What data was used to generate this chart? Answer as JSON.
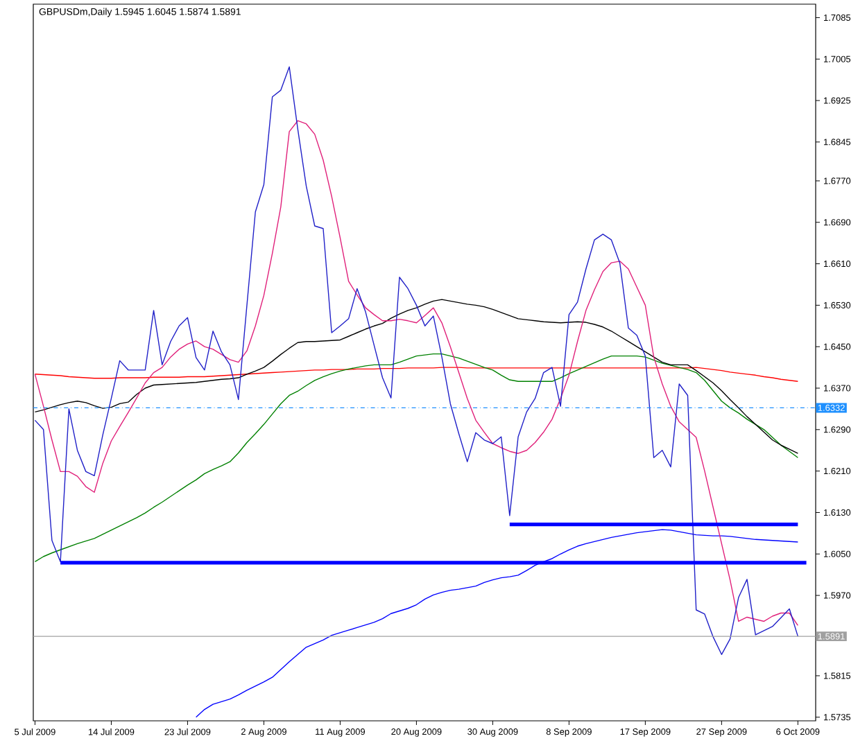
{
  "chart_data": {
    "type": "line",
    "title": "GBPUSDm,Daily  1.5945 1.6045 1.5874 1.5891",
    "ylim": [
      1.5728,
      1.7111
    ],
    "categories": [
      "5 Jul 2009",
      null,
      null,
      null,
      null,
      null,
      null,
      null,
      null,
      "14 Jul 2009",
      null,
      null,
      null,
      null,
      null,
      null,
      null,
      null,
      "23 Jul 2009",
      null,
      null,
      null,
      null,
      null,
      null,
      null,
      null,
      "2 Aug 2009",
      null,
      null,
      null,
      null,
      null,
      null,
      null,
      null,
      "11 Aug 2009",
      null,
      null,
      null,
      null,
      null,
      null,
      null,
      null,
      "20 Aug 2009",
      null,
      null,
      null,
      null,
      null,
      null,
      null,
      null,
      "30 Aug 2009",
      null,
      null,
      null,
      null,
      null,
      null,
      null,
      null,
      "8 Sep 2009",
      null,
      null,
      null,
      null,
      null,
      null,
      null,
      null,
      "17 Sep 2009",
      null,
      null,
      null,
      null,
      null,
      null,
      null,
      null,
      "27 Sep 2009",
      null,
      null,
      null,
      null,
      null,
      null,
      null,
      null,
      "6 Oct 2009",
      null,
      null
    ],
    "yticks": [
      1.5735,
      1.5815,
      {
        "value": 1.597,
        "label": "1.5970"
      },
      {
        "value": 1.605,
        "label": "1.6050"
      },
      {
        "value": 1.613,
        "label": "1.6130"
      },
      {
        "value": 1.621,
        "label": "1.6210"
      },
      {
        "value": 1.629,
        "label": "1.6290"
      },
      {
        "value": 1.637,
        "label": "1.6370"
      },
      {
        "value": 1.645,
        "label": "1.6450"
      },
      {
        "value": 1.653,
        "label": "1.6530"
      },
      {
        "value": 1.661,
        "label": "1.6610"
      },
      {
        "value": 1.669,
        "label": "1.6690"
      },
      {
        "value": 1.677,
        "label": "1.6770"
      },
      1.6845,
      1.6925,
      1.7005,
      1.7085
    ],
    "ref_lines": [
      {
        "axis": "y",
        "value": 1.6332,
        "label": "1.6332",
        "color": "#1e90ff",
        "line_style": "dashdot"
      },
      {
        "axis": "y",
        "value": 1.5891,
        "label": "1.5891",
        "color": "#a0a0a0",
        "line_style": "solid"
      }
    ],
    "series": [
      {
        "color": "#0000ff",
        "values": [
          null,
          null,
          null,
          null,
          null,
          null,
          null,
          null,
          null,
          null,
          null,
          null,
          null,
          null,
          null,
          null,
          null,
          null,
          null,
          1.5735,
          1.575,
          1.576,
          1.5765,
          1.577,
          1.5778,
          1.5787,
          1.5795,
          1.5803,
          1.5812,
          1.5827,
          1.5842,
          1.5856,
          1.587,
          1.5877,
          1.5884,
          1.5893,
          1.5898,
          1.5903,
          1.5908,
          1.5913,
          1.5918,
          1.5925,
          1.5935,
          1.594,
          1.5945,
          1.5952,
          1.5963,
          1.5971,
          1.5976,
          1.598,
          1.5982,
          1.5985,
          1.5988,
          1.5995,
          1.6,
          1.6004,
          1.6006,
          1.6009,
          1.6018,
          1.6028,
          1.6035,
          1.6041,
          1.605,
          1.6058,
          1.6065,
          1.607,
          1.6074,
          1.6078,
          1.6082,
          1.6085,
          1.6088,
          1.6091,
          1.6093,
          1.6095,
          1.6097,
          1.6096,
          1.6093,
          1.609,
          1.6087,
          1.6086,
          1.6085,
          1.6085,
          1.6084,
          1.6082,
          1.608,
          1.6078,
          1.6077,
          1.6076,
          1.6075,
          1.6074,
          1.6073,
          null,
          null
        ]
      },
      {
        "color": "#ff0000",
        "values": [
          1.6397,
          1.6396,
          1.6395,
          1.6394,
          1.6392,
          1.6391,
          1.639,
          1.6389,
          1.6389,
          1.6389,
          1.639,
          1.639,
          1.639,
          1.639,
          1.6391,
          1.6391,
          1.6391,
          1.6391,
          1.6392,
          1.6392,
          1.6392,
          1.6393,
          1.6394,
          1.6395,
          1.6396,
          1.6397,
          1.6398,
          1.6399,
          1.64,
          1.6401,
          1.6402,
          1.6403,
          1.6404,
          1.6405,
          1.6405,
          1.6406,
          1.6406,
          1.6406,
          1.6407,
          1.6407,
          1.6407,
          1.6408,
          1.6408,
          1.6408,
          1.6409,
          1.6409,
          1.6409,
          1.6409,
          1.641,
          1.641,
          1.641,
          1.6409,
          1.6409,
          1.6409,
          1.6409,
          1.6409,
          1.6409,
          1.6409,
          1.6409,
          1.6409,
          1.6409,
          1.6409,
          1.6409,
          1.6409,
          1.6409,
          1.6409,
          1.6409,
          1.6409,
          1.6409,
          1.6409,
          1.6409,
          1.6409,
          1.6409,
          1.6409,
          1.6409,
          1.6409,
          1.6409,
          1.6409,
          1.641,
          1.6408,
          1.6406,
          1.6404,
          1.6401,
          1.6399,
          1.6397,
          1.6395,
          1.6392,
          1.639,
          1.6387,
          1.6385,
          1.6383,
          null,
          null
        ]
      },
      {
        "color": "#008000",
        "values": [
          1.6035,
          1.6045,
          1.6052,
          1.6058,
          1.6064,
          1.607,
          1.6075,
          1.608,
          1.6088,
          1.6096,
          1.6104,
          1.6112,
          1.612,
          1.6129,
          1.614,
          1.615,
          1.6161,
          1.6172,
          1.6183,
          1.6193,
          1.6205,
          1.6213,
          1.622,
          1.6228,
          1.6245,
          1.6265,
          1.6282,
          1.63,
          1.632,
          1.634,
          1.6356,
          1.6364,
          1.6375,
          1.6385,
          1.6392,
          1.6398,
          1.6403,
          1.6407,
          1.641,
          1.6413,
          1.6415,
          1.6415,
          1.6415,
          1.642,
          1.6426,
          1.6432,
          1.6434,
          1.6436,
          1.6436,
          1.6432,
          1.6428,
          1.6422,
          1.6416,
          1.641,
          1.6405,
          1.6395,
          1.6386,
          1.6383,
          1.6383,
          1.6383,
          1.6383,
          1.6383,
          1.639,
          1.6398,
          1.6405,
          1.6412,
          1.6419,
          1.6426,
          1.6432,
          1.6432,
          1.6432,
          1.6432,
          1.643,
          1.6424,
          1.6418,
          1.6414,
          1.641,
          1.6406,
          1.64,
          1.6385,
          1.6365,
          1.6345,
          1.6332,
          1.6322,
          1.631,
          1.63,
          1.629,
          1.6275,
          1.626,
          1.6248,
          1.6236,
          null,
          null
        ]
      },
      {
        "color": "#000000",
        "values": [
          1.6324,
          1.6328,
          1.6333,
          1.6338,
          1.6342,
          1.6345,
          1.6342,
          1.6336,
          1.6331,
          1.6333,
          1.634,
          1.6343,
          1.6358,
          1.637,
          1.6376,
          1.6377,
          1.6378,
          1.6379,
          1.638,
          1.6381,
          1.6383,
          1.6385,
          1.6387,
          1.6388,
          1.639,
          1.6397,
          1.6403,
          1.641,
          1.6422,
          1.6435,
          1.6447,
          1.6458,
          1.646,
          1.646,
          1.6461,
          1.6462,
          1.6463,
          1.647,
          1.6477,
          1.6484,
          1.649,
          1.6495,
          1.6505,
          1.6513,
          1.652,
          1.6525,
          1.6532,
          1.6538,
          1.6541,
          1.6538,
          1.6535,
          1.6532,
          1.653,
          1.6527,
          1.6522,
          1.6516,
          1.651,
          1.6504,
          1.6502,
          1.65,
          1.6498,
          1.6497,
          1.6496,
          1.6497,
          1.6498,
          1.6497,
          1.6493,
          1.6488,
          1.648,
          1.647,
          1.646,
          1.645,
          1.644,
          1.643,
          1.642,
          1.6415,
          1.6415,
          1.6415,
          1.6404,
          1.6392,
          1.638,
          1.6365,
          1.6348,
          1.6332,
          1.6315,
          1.63,
          1.6285,
          1.627,
          1.626,
          1.6252,
          1.6244,
          null,
          null
        ]
      },
      {
        "color": "#e0207a",
        "values": [
          1.6397,
          1.6335,
          1.627,
          1.6209,
          1.6209,
          1.62,
          1.618,
          1.6169,
          1.6225,
          1.6268,
          1.6296,
          1.6323,
          1.6351,
          1.638,
          1.64,
          1.641,
          1.643,
          1.6445,
          1.6455,
          1.6461,
          1.645,
          1.6445,
          1.6435,
          1.6425,
          1.642,
          1.6442,
          1.649,
          1.6549,
          1.663,
          1.672,
          1.6865,
          1.6886,
          1.688,
          1.686,
          1.681,
          1.674,
          1.666,
          1.6576,
          1.655,
          1.6525,
          1.6512,
          1.65,
          1.65,
          1.6503,
          1.65,
          1.6496,
          1.651,
          1.6525,
          1.6496,
          1.645,
          1.64,
          1.635,
          1.6308,
          1.6285,
          1.6263,
          1.6255,
          1.6248,
          1.6244,
          1.625,
          1.6265,
          1.6285,
          1.631,
          1.635,
          1.6395,
          1.646,
          1.652,
          1.656,
          1.6595,
          1.6612,
          1.6615,
          1.66,
          1.6565,
          1.653,
          1.643,
          1.6378,
          1.6335,
          1.6305,
          1.629,
          1.6275,
          1.621,
          1.614,
          1.607,
          1.6,
          1.592,
          1.5928,
          1.5924,
          1.592,
          1.593,
          1.5936,
          1.5936,
          1.5912,
          null,
          null
        ]
      },
      {
        "color": "#2020c8",
        "values": [
          1.6308,
          1.629,
          1.6076,
          1.6035,
          1.633,
          1.625,
          1.6209,
          1.6201,
          1.628,
          1.635,
          1.6423,
          1.6405,
          1.6405,
          1.6405,
          1.652,
          1.6415,
          1.646,
          1.649,
          1.6506,
          1.6429,
          1.6405,
          1.648,
          1.644,
          1.6415,
          1.6348,
          1.653,
          1.671,
          1.6763,
          1.6932,
          1.6945,
          1.699,
          1.687,
          1.676,
          1.6683,
          1.6678,
          1.6477,
          1.649,
          1.6504,
          1.6562,
          1.6517,
          1.6453,
          1.639,
          1.6351,
          1.6584,
          1.6562,
          1.653,
          1.649,
          1.6509,
          1.643,
          1.634,
          1.6282,
          1.6228,
          1.6284,
          1.627,
          1.6263,
          1.6276,
          1.6124,
          1.6276,
          1.6324,
          1.635,
          1.64,
          1.641,
          1.6335,
          1.6512,
          1.6536,
          1.66,
          1.6656,
          1.6667,
          1.6656,
          1.6611,
          1.6486,
          1.6472,
          1.6432,
          1.6236,
          1.625,
          1.6218,
          1.6378,
          1.6356,
          1.5942,
          1.5934,
          1.589,
          1.5856,
          1.5886,
          1.5966,
          1.6001,
          1.5894,
          1.5902,
          1.591,
          1.5927,
          1.5944,
          1.5891,
          null,
          null
        ]
      },
      {
        "color": "#0000ff",
        "values": [
          null,
          null,
          null,
          1.6033,
          1.6033,
          1.6033,
          1.6033,
          1.6033,
          1.6033,
          1.6033,
          1.6033,
          1.6033,
          1.6033,
          1.6033,
          1.6033,
          1.6033,
          1.6033,
          1.6033,
          1.6033,
          1.6033,
          1.6033,
          1.6033,
          1.6033,
          1.6033,
          1.6033,
          1.6033,
          1.6033,
          1.6033,
          1.6033,
          1.6033,
          1.6033,
          1.6033,
          1.6033,
          1.6033,
          1.6033,
          1.6033,
          1.6033,
          1.6033,
          1.6033,
          1.6033,
          1.6033,
          1.6033,
          1.6033,
          1.6033,
          1.6033,
          1.6033,
          1.6033,
          1.6033,
          1.6033,
          1.6033,
          1.6033,
          1.6033,
          1.6033,
          1.6033,
          1.6033,
          1.6033,
          1.6033,
          1.6033,
          1.6033,
          1.6033,
          1.6033,
          1.6033,
          1.6033,
          1.6033,
          1.6033,
          1.6033,
          1.6033,
          1.6033,
          1.6033,
          1.6033,
          1.6033,
          1.6033,
          1.6033,
          1.6033,
          1.6033,
          1.6033,
          1.6033,
          1.6033,
          1.6033,
          1.6033,
          1.6033,
          1.6033,
          1.6033,
          1.6033,
          1.6033,
          1.6033,
          1.6033,
          1.6033,
          1.6033,
          1.6033,
          1.6033,
          1.6033,
          null
        ]
      },
      {
        "color": "#0000ff",
        "values": [
          null,
          null,
          null,
          null,
          null,
          null,
          null,
          null,
          null,
          null,
          null,
          null,
          null,
          null,
          null,
          null,
          null,
          null,
          null,
          null,
          null,
          null,
          null,
          null,
          null,
          null,
          null,
          null,
          null,
          null,
          null,
          null,
          null,
          null,
          null,
          null,
          null,
          null,
          null,
          null,
          null,
          null,
          null,
          null,
          null,
          null,
          null,
          null,
          null,
          null,
          null,
          null,
          null,
          null,
          null,
          null,
          1.6107,
          1.6107,
          1.6107,
          1.6107,
          1.6107,
          1.6107,
          1.6107,
          1.6107,
          1.6107,
          1.6107,
          1.6107,
          1.6107,
          1.6107,
          1.6107,
          1.6107,
          1.6107,
          1.6107,
          1.6107,
          1.6107,
          1.6107,
          1.6107,
          1.6107,
          1.6107,
          1.6107,
          1.6107,
          1.6107,
          1.6107,
          1.6107,
          1.6107,
          1.6107,
          1.6107,
          1.6107,
          1.6107,
          1.6107,
          1.6107,
          null,
          null
        ]
      }
    ]
  }
}
